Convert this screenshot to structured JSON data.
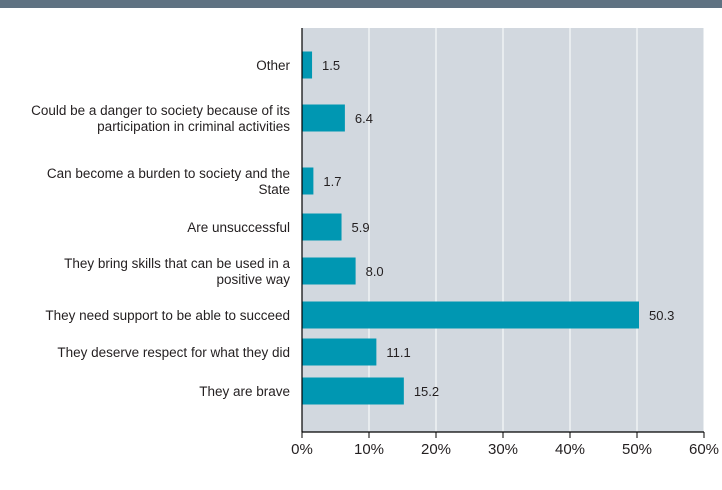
{
  "colors": {
    "top_band": "#5f7282",
    "plot_background": "#d2d8df",
    "gridline": "#ffffff",
    "axis": "#000000",
    "bar": "#0097b2",
    "text": "#231f20"
  },
  "chart_data": {
    "type": "bar",
    "orientation": "horizontal",
    "categories": [
      [
        "Other"
      ],
      [
        "Could be a danger to society because of its",
        "participation in criminal activities"
      ],
      [
        "Can become a burden to society and the",
        "State"
      ],
      [
        "Are unsuccessful"
      ],
      [
        "They bring skills that can be used in a",
        "positive way"
      ],
      [
        "They need support to be able to succeed"
      ],
      [
        "They deserve respect for what they did"
      ],
      [
        "They are brave"
      ]
    ],
    "values": [
      1.5,
      6.4,
      1.7,
      5.9,
      8.0,
      50.3,
      11.1,
      15.2
    ],
    "value_labels": [
      "1.5",
      "6.4",
      "1.7",
      "5.9",
      "8.0",
      "50.3",
      "11.1",
      "15.2"
    ],
    "xlim": [
      0,
      60
    ],
    "xticks": [
      0,
      10,
      20,
      30,
      40,
      50,
      60
    ],
    "xtick_labels": [
      "0%",
      "10%",
      "20%",
      "30%",
      "40%",
      "50%",
      "60%"
    ],
    "grid": true,
    "title": "",
    "xlabel": "",
    "ylabel": ""
  }
}
